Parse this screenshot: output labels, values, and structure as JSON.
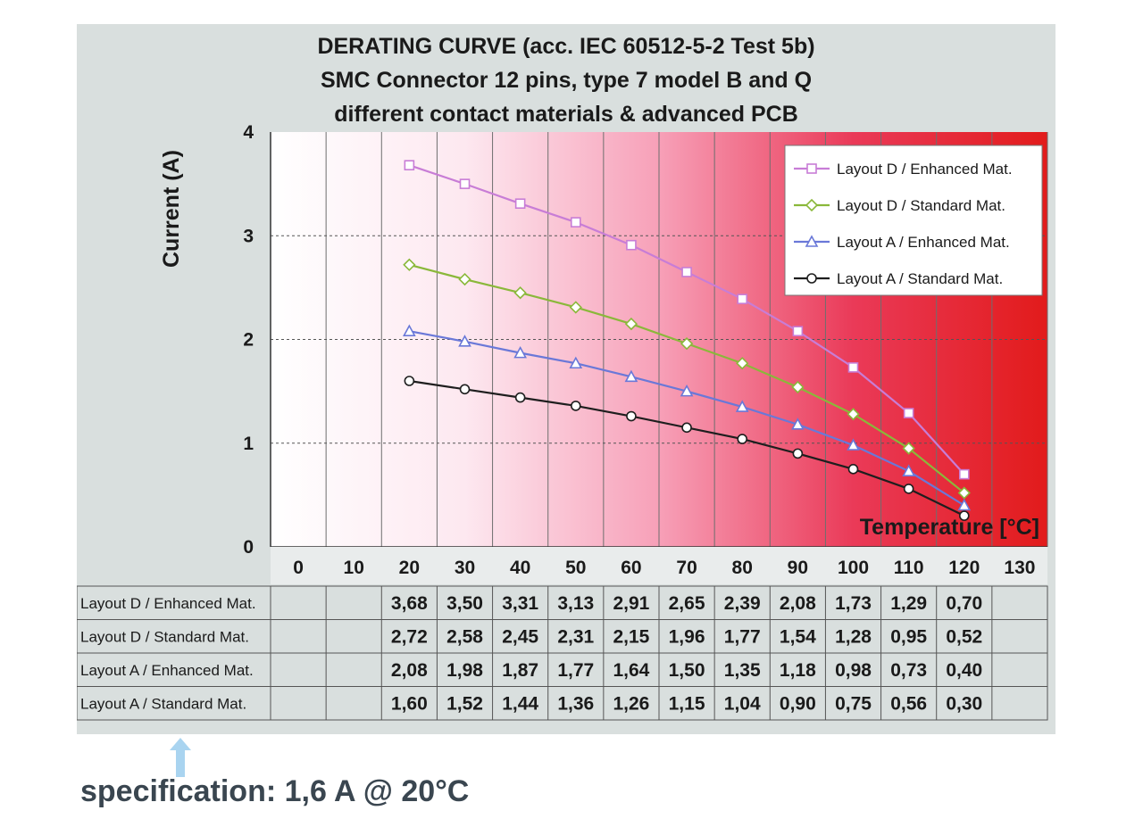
{
  "chart_data": {
    "type": "line",
    "title": [
      "DERATING CURVE (acc. IEC 60512-5-2 Test 5b)",
      "SMC Connector 12 pins, type 7 model B and Q",
      "different contact materials & advanced PCB"
    ],
    "xlabel": "Temperature [°C]",
    "ylabel": "Current (A)",
    "xlim": [
      0,
      130
    ],
    "ylim": [
      0,
      4
    ],
    "x_ticks": [
      "0",
      "10",
      "20",
      "30",
      "40",
      "50",
      "60",
      "70",
      "80",
      "90",
      "100",
      "110",
      "120",
      "130"
    ],
    "y_ticks": [
      "0",
      "1",
      "2",
      "3",
      "4"
    ],
    "x": [
      20,
      30,
      40,
      50,
      60,
      70,
      80,
      90,
      100,
      110,
      120
    ],
    "background": "gradient white to red with increasing temperature",
    "legend_position": "top-right",
    "series": [
      {
        "name": "Layout D / Enhanced Mat.",
        "color": "#c87dd6",
        "marker": "square",
        "values": [
          3.68,
          3.5,
          3.31,
          3.13,
          2.91,
          2.65,
          2.39,
          2.08,
          1.73,
          1.29,
          0.7
        ],
        "labels": [
          "3,68",
          "3,50",
          "3,31",
          "3,13",
          "2,91",
          "2,65",
          "2,39",
          "2,08",
          "1,73",
          "1,29",
          "0,70"
        ]
      },
      {
        "name": "Layout D / Standard Mat.",
        "color": "#8ab83a",
        "marker": "diamond",
        "values": [
          2.72,
          2.58,
          2.45,
          2.31,
          2.15,
          1.96,
          1.77,
          1.54,
          1.28,
          0.95,
          0.52
        ],
        "labels": [
          "2,72",
          "2,58",
          "2,45",
          "2,31",
          "2,15",
          "1,96",
          "1,77",
          "1,54",
          "1,28",
          "0,95",
          "0,52"
        ]
      },
      {
        "name": "Layout A / Enhanced Mat.",
        "color": "#6a78d8",
        "marker": "triangle",
        "values": [
          2.08,
          1.98,
          1.87,
          1.77,
          1.64,
          1.5,
          1.35,
          1.18,
          0.98,
          0.73,
          0.4
        ],
        "labels": [
          "2,08",
          "1,98",
          "1,87",
          "1,77",
          "1,64",
          "1,50",
          "1,35",
          "1,18",
          "0,98",
          "0,73",
          "0,40"
        ]
      },
      {
        "name": "Layout A / Standard Mat.",
        "color": "#1e1e1e",
        "marker": "circle",
        "values": [
          1.6,
          1.52,
          1.44,
          1.36,
          1.26,
          1.15,
          1.04,
          0.9,
          0.75,
          0.56,
          0.3
        ],
        "labels": [
          "1,60",
          "1,52",
          "1,44",
          "1,36",
          "1,26",
          "1,15",
          "1,04",
          "0,90",
          "0,75",
          "0,56",
          "0,30"
        ]
      }
    ]
  },
  "footer": {
    "specification": "specification:  1,6 A @ 20°C",
    "arrow_color": "#a9d4f0"
  }
}
